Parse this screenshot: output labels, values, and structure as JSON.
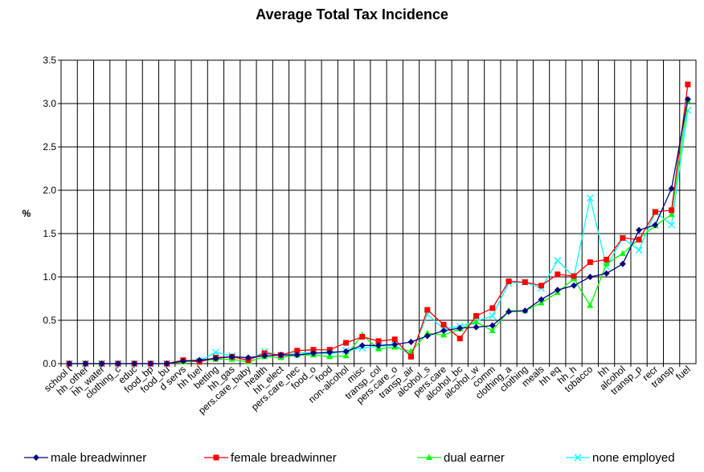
{
  "chart_data": {
    "type": "line",
    "title": "Average Total Tax Incidence",
    "xlabel": "",
    "ylabel": "%",
    "ylim": [
      0,
      3.5
    ],
    "yticks": [
      "0.0",
      "0.5",
      "1.0",
      "1.5",
      "2.0",
      "2.5",
      "3.0",
      "3.5"
    ],
    "grid": true,
    "legend_position": "bottom",
    "categories": [
      "school t",
      "hh_other",
      "hh_water",
      "clothing_c",
      "educ",
      "food_bp",
      "food_bu",
      "d servs",
      "hh fuel",
      "betting",
      "hh_gas",
      "pers.care_baby",
      "health",
      "hh_elect",
      "pers.care_nec",
      "food_o",
      "food",
      "non-alcohol",
      "misc",
      "transp_col",
      "pers.care_o",
      "transp_air",
      "alcohol_s",
      "pers.care",
      "alcohol_bc",
      "alcohol_w",
      "comm",
      "clothing_a",
      "clothing",
      "meals",
      "hh eq",
      "hh_h",
      "tobacco",
      "hh",
      "alcohol",
      "transp_p",
      "recr",
      "transp",
      "fuel"
    ],
    "series": [
      {
        "name": "male breadwinner",
        "color": "#000080",
        "marker": "diamond",
        "values": [
          0,
          0,
          0,
          0,
          0,
          0,
          0,
          0.03,
          0.04,
          0.06,
          0.08,
          0.07,
          0.09,
          0.1,
          0.1,
          0.12,
          0.13,
          0.14,
          0.21,
          0.21,
          0.22,
          0.25,
          0.32,
          0.38,
          0.41,
          0.42,
          0.44,
          0.6,
          0.61,
          0.74,
          0.85,
          0.9,
          1.0,
          1.04,
          1.15,
          1.54,
          1.6,
          2.02,
          3.05
        ]
      },
      {
        "name": "female breadwinner",
        "color": "#ff0000",
        "marker": "square",
        "values": [
          0,
          0,
          0,
          0,
          0,
          0,
          0,
          0.04,
          0.02,
          0.07,
          0.08,
          0.04,
          0.12,
          0.1,
          0.15,
          0.16,
          0.16,
          0.24,
          0.31,
          0.26,
          0.28,
          0.08,
          0.62,
          0.45,
          0.29,
          0.55,
          0.64,
          0.95,
          0.94,
          0.9,
          1.03,
          1.01,
          1.17,
          1.2,
          1.45,
          1.43,
          1.75,
          1.77,
          3.22
        ]
      },
      {
        "name": "dual earner",
        "color": "#00ff00",
        "marker": "triangle",
        "values": [
          0,
          0,
          0,
          0,
          0,
          0,
          0,
          0.02,
          0.03,
          0.05,
          0.05,
          0.02,
          0.08,
          0.07,
          0.1,
          0.1,
          0.08,
          0.09,
          0.33,
          0.17,
          0.19,
          0.14,
          0.35,
          0.33,
          0.4,
          0.48,
          0.38,
          0.61,
          0.61,
          0.7,
          0.82,
          0.98,
          0.67,
          1.15,
          1.27,
          1.44,
          1.59,
          1.72,
          3.03
        ]
      },
      {
        "name": "none employed",
        "color": "#00ffff",
        "marker": "x",
        "values": [
          0,
          0,
          0,
          0,
          0,
          0,
          0,
          0.03,
          0.03,
          0.13,
          0.09,
          0.03,
          0.14,
          0.09,
          0.12,
          0.13,
          0.11,
          0.15,
          0.18,
          0.2,
          0.21,
          0.1,
          0.57,
          0.4,
          0.43,
          0.49,
          0.55,
          0.93,
          0.94,
          0.87,
          1.19,
          1.0,
          1.91,
          1.12,
          1.45,
          1.31,
          1.75,
          1.6,
          2.92
        ]
      }
    ]
  }
}
